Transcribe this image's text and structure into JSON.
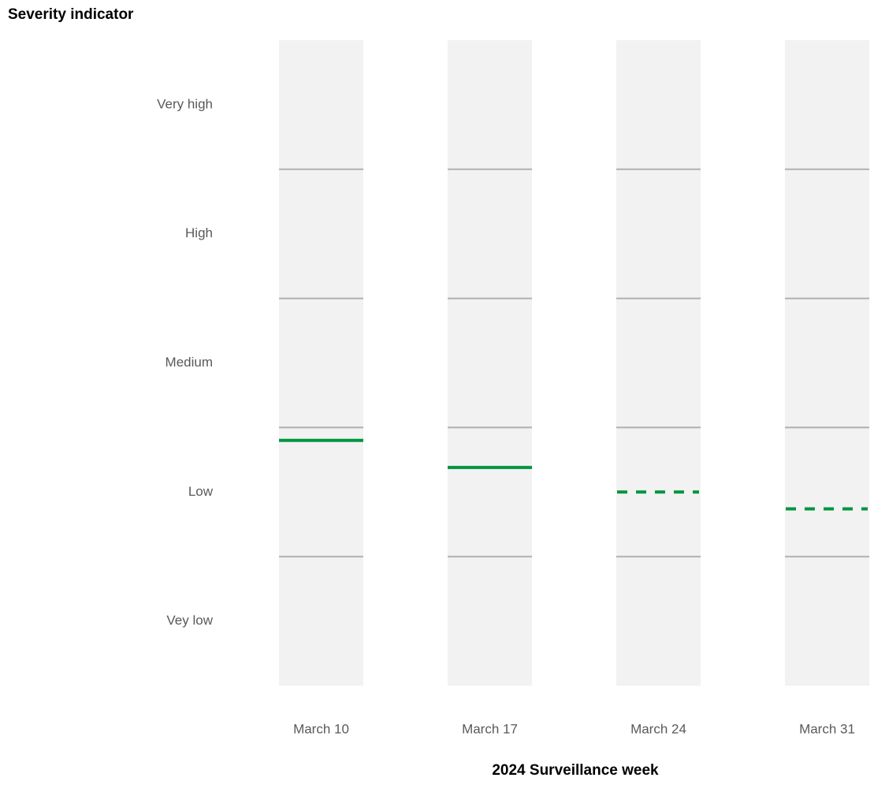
{
  "chart_data": {
    "type": "level",
    "title": "Severity indicator",
    "x_label": "2024 Surveillance week",
    "categories": [
      "March 10",
      "March 17",
      "March 24",
      "March 31"
    ],
    "values": [
      1.9,
      1.69,
      1.5,
      1.37
    ],
    "line_styles": [
      "solid",
      "solid",
      "dashed",
      "dashed"
    ],
    "color": "#00953f",
    "ylim": [
      0,
      5
    ],
    "yticks": [
      {
        "value": 0.5,
        "label": "Vey low"
      },
      {
        "value": 1.5,
        "label": "Low"
      },
      {
        "value": 2.5,
        "label": "Medium"
      },
      {
        "value": 3.5,
        "label": "High"
      },
      {
        "value": 4.5,
        "label": "Very high"
      }
    ],
    "band_boundaries": [
      1,
      2,
      3,
      4
    ]
  }
}
